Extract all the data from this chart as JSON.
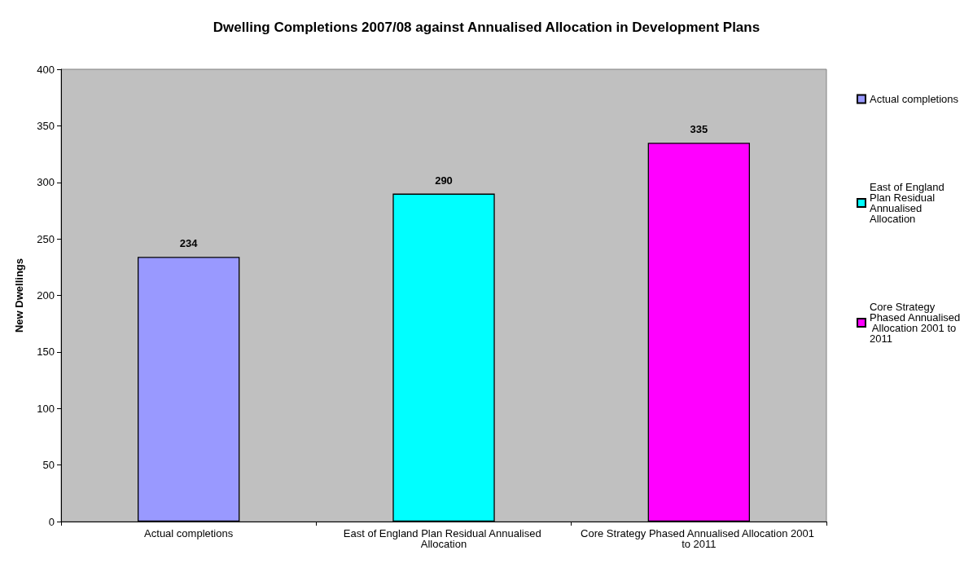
{
  "chart_data": {
    "type": "bar",
    "title": "Dwelling Completions 2007/08 against Annualised Allocation in Development Plans",
    "ylabel": "New Dwellings",
    "categories": [
      "Actual completions",
      "East of England Plan Residual Annualised Allocation",
      "Core Strategy Phased Annualised Allocation 2001 to 2011"
    ],
    "series": [
      {
        "name": "Actual completions",
        "color": "#9999ff",
        "values": [
          234,
          null,
          null
        ]
      },
      {
        "name": "East of England Plan Residual Annualised Allocation",
        "color": "#00ffff",
        "values": [
          null,
          290,
          null
        ]
      },
      {
        "name": "Core Strategy Phased Annualised Allocation 2001 to 2011",
        "color": "#ff00ff",
        "values": [
          null,
          null,
          335
        ]
      }
    ],
    "ylim": [
      0,
      400
    ],
    "yticks": [
      0,
      50,
      100,
      150,
      200,
      250,
      300,
      350,
      400
    ],
    "grid": false,
    "legend": "right",
    "data_labels": true
  }
}
